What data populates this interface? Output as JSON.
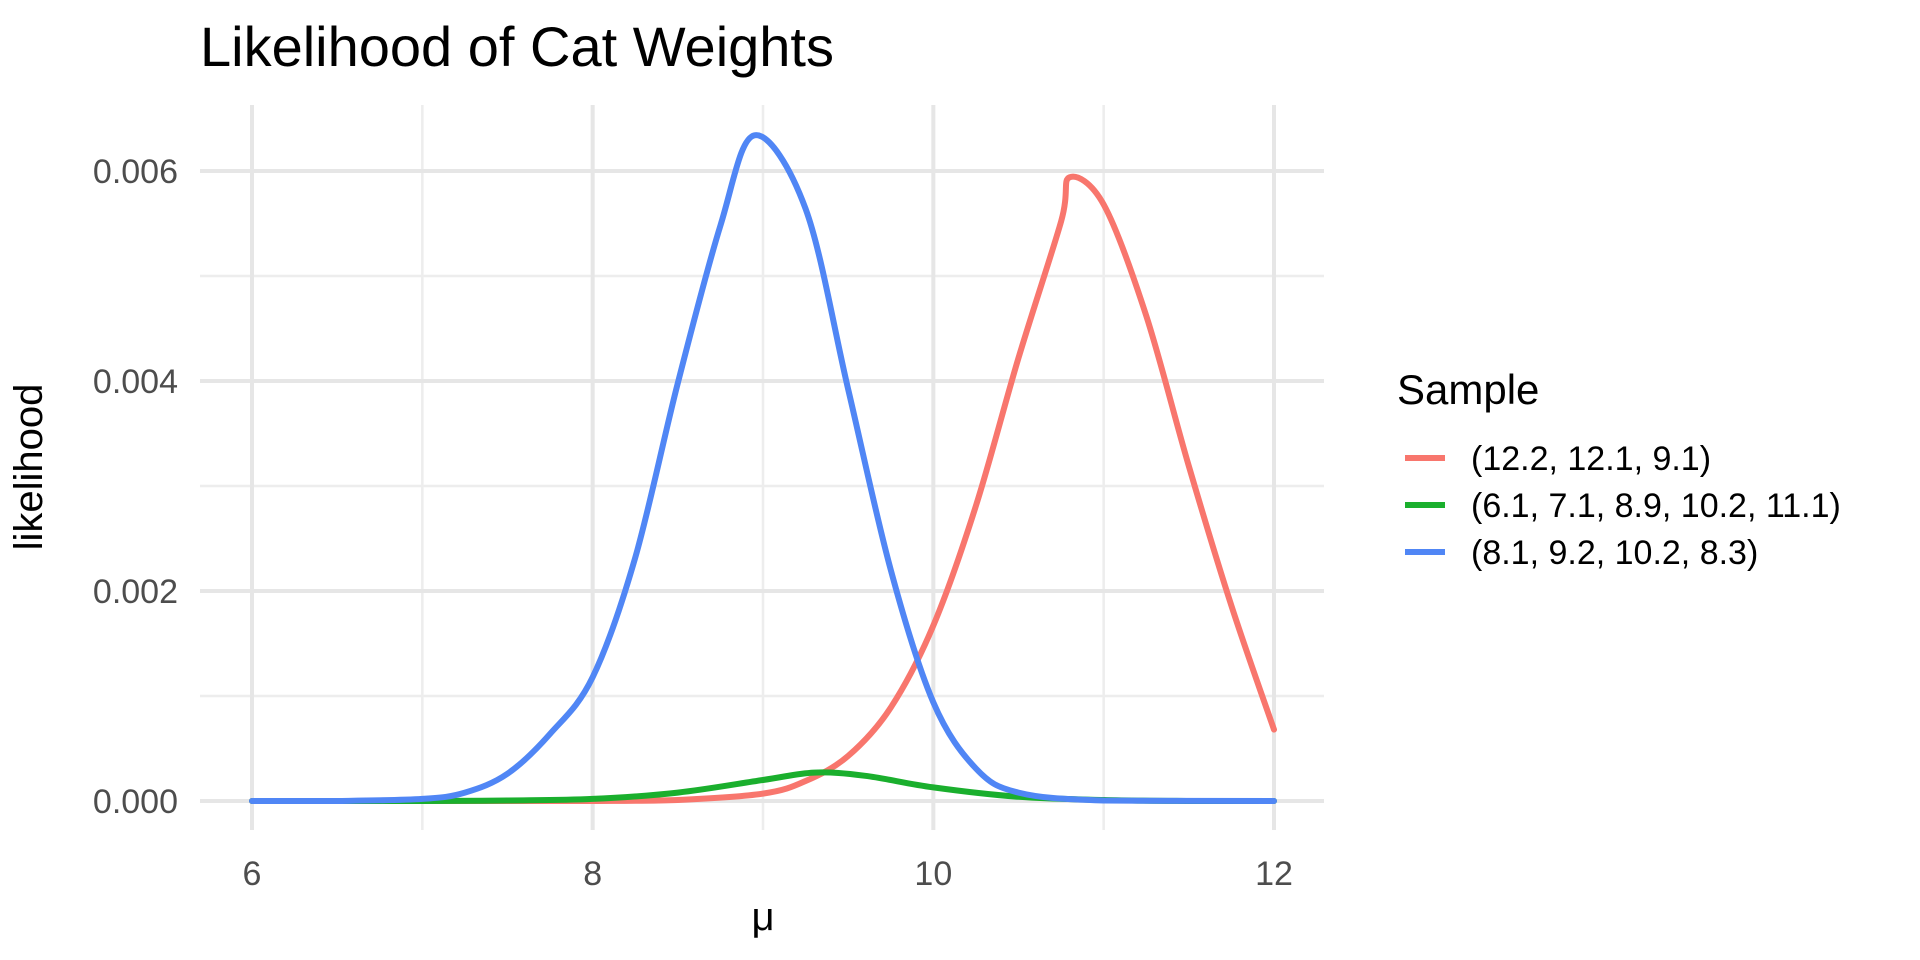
{
  "chart_data": {
    "type": "line",
    "title": "Likelihood of Cat Weights",
    "xlabel": "μ",
    "ylabel": "likelihood",
    "xlim": [
      6,
      12
    ],
    "ylim": [
      0,
      0.0066
    ],
    "x_ticks": [
      6,
      8,
      10,
      12
    ],
    "x_tick_labels": [
      "6",
      "8",
      "10",
      "12"
    ],
    "y_ticks": [
      0,
      0.002,
      0.004,
      0.006
    ],
    "y_tick_labels": [
      "0.000",
      "0.002",
      "0.004",
      "0.006"
    ],
    "grid": true,
    "legend": {
      "title": "Sample",
      "position": "right"
    },
    "series": [
      {
        "name": "(12.2, 12.1, 9.1)",
        "color": "#f8766d",
        "x": [
          6.0,
          6.5,
          7.0,
          7.5,
          8.0,
          8.5,
          9.0,
          9.25,
          9.5,
          9.75,
          10.0,
          10.25,
          10.5,
          10.75,
          10.8,
          11.0,
          11.25,
          11.5,
          11.75,
          12.0
        ],
        "y": [
          0.0,
          0.0,
          0.0,
          0.0,
          0.0,
          1e-05,
          7e-05,
          0.00019,
          0.00043,
          0.00089,
          0.00167,
          0.00281,
          0.00422,
          0.00552,
          0.00594,
          0.00568,
          0.00462,
          0.00319,
          0.00186,
          0.00068
        ]
      },
      {
        "name": "(6.1, 7.1, 8.9, 10.2, 11.1)",
        "color": "#1aaf2d",
        "x": [
          6.0,
          7.0,
          7.5,
          8.0,
          8.5,
          9.0,
          9.3,
          9.6,
          10.0,
          10.5,
          11.0,
          11.5,
          12.0
        ],
        "y": [
          0.0,
          0.0,
          5e-06,
          2e-05,
          8e-05,
          0.0002,
          0.00027,
          0.00024,
          0.00013,
          4e-05,
          1e-05,
          0.0,
          0.0
        ]
      },
      {
        "name": "(8.1, 9.2, 10.2, 8.3)",
        "color": "#5086f5",
        "x": [
          6.0,
          6.5,
          7.0,
          7.25,
          7.5,
          7.75,
          8.0,
          8.25,
          8.5,
          8.75,
          8.95,
          9.25,
          9.5,
          9.75,
          10.0,
          10.25,
          10.5,
          11.0,
          12.0
        ],
        "y": [
          0.0,
          0.0,
          2e-05,
          8e-05,
          0.00026,
          0.00064,
          0.00118,
          0.00232,
          0.00398,
          0.00548,
          0.00634,
          0.00564,
          0.00392,
          0.0022,
          0.00094,
          0.00031,
          8e-05,
          5e-06,
          0.0
        ]
      }
    ]
  }
}
